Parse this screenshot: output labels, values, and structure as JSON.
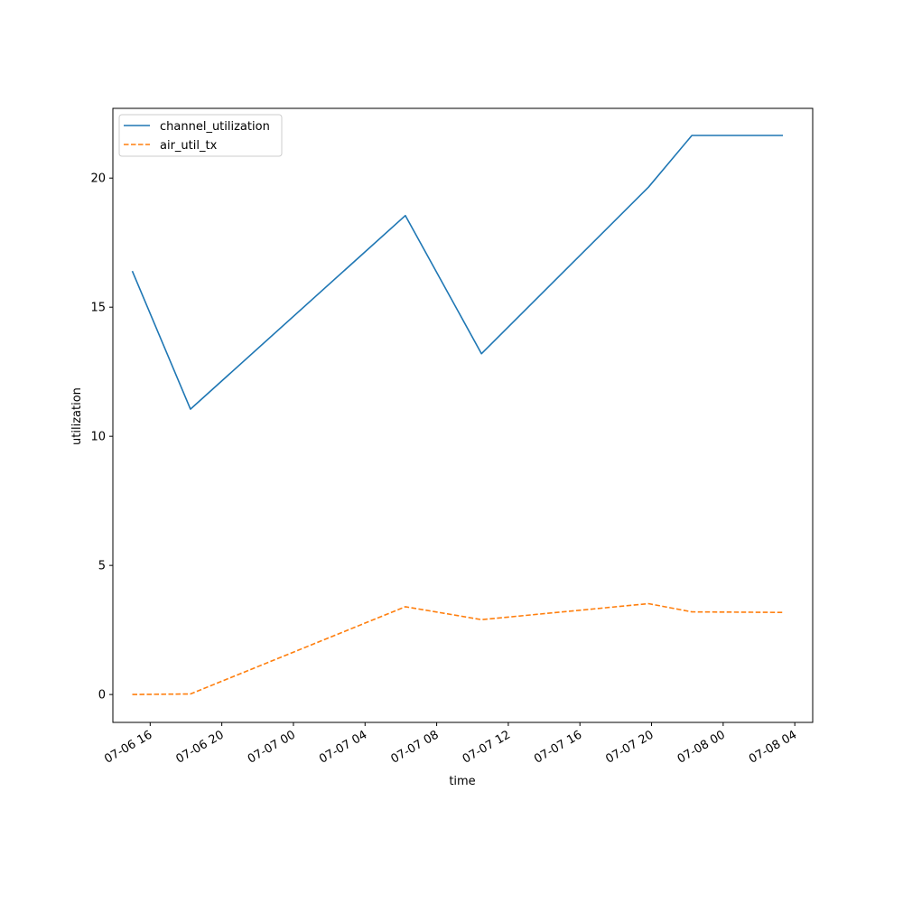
{
  "chart_data": {
    "type": "line",
    "title": "",
    "xlabel": "time",
    "ylabel": "utilization",
    "x_tick_labels": [
      "07-06 16",
      "07-06 20",
      "07-07 00",
      "07-07 04",
      "07-07 08",
      "07-07 12",
      "07-07 16",
      "07-07 20",
      "07-08 00",
      "07-08 04"
    ],
    "x_ticks": [
      "2024-07-06 16:00",
      "2024-07-06 20:00",
      "2024-07-07 00:00",
      "2024-07-07 04:00",
      "2024-07-07 08:00",
      "2024-07-07 12:00",
      "2024-07-07 16:00",
      "2024-07-07 20:00",
      "2024-07-08 00:00",
      "2024-07-08 04:00"
    ],
    "xlim": [
      "2024-07-06 13:55",
      "2024-07-08 05:00"
    ],
    "y_ticks": [
      0,
      5,
      10,
      15,
      20
    ],
    "ylim": [
      -1.08,
      22.7
    ],
    "grid": false,
    "legend_position": "top-left",
    "series": [
      {
        "name": "channel_utilization",
        "color": "#1f77b4",
        "style": "solid",
        "x": [
          "2024-07-06 15:00",
          "2024-07-06 18:15",
          "2024-07-07 06:15",
          "2024-07-07 10:30",
          "2024-07-07 19:50",
          "2024-07-07 22:15",
          "2024-07-08 03:20"
        ],
        "values": [
          16.4,
          11.05,
          18.55,
          13.2,
          19.65,
          21.65,
          21.65
        ]
      },
      {
        "name": "air_util_tx",
        "color": "#ff7f0e",
        "style": "dashed",
        "x": [
          "2024-07-06 15:00",
          "2024-07-06 18:15",
          "2024-07-07 06:15",
          "2024-07-07 10:30",
          "2024-07-07 19:50",
          "2024-07-07 22:15",
          "2024-07-08 03:20"
        ],
        "values": [
          0.0,
          0.02,
          3.4,
          2.9,
          3.52,
          3.2,
          3.18
        ]
      }
    ]
  }
}
